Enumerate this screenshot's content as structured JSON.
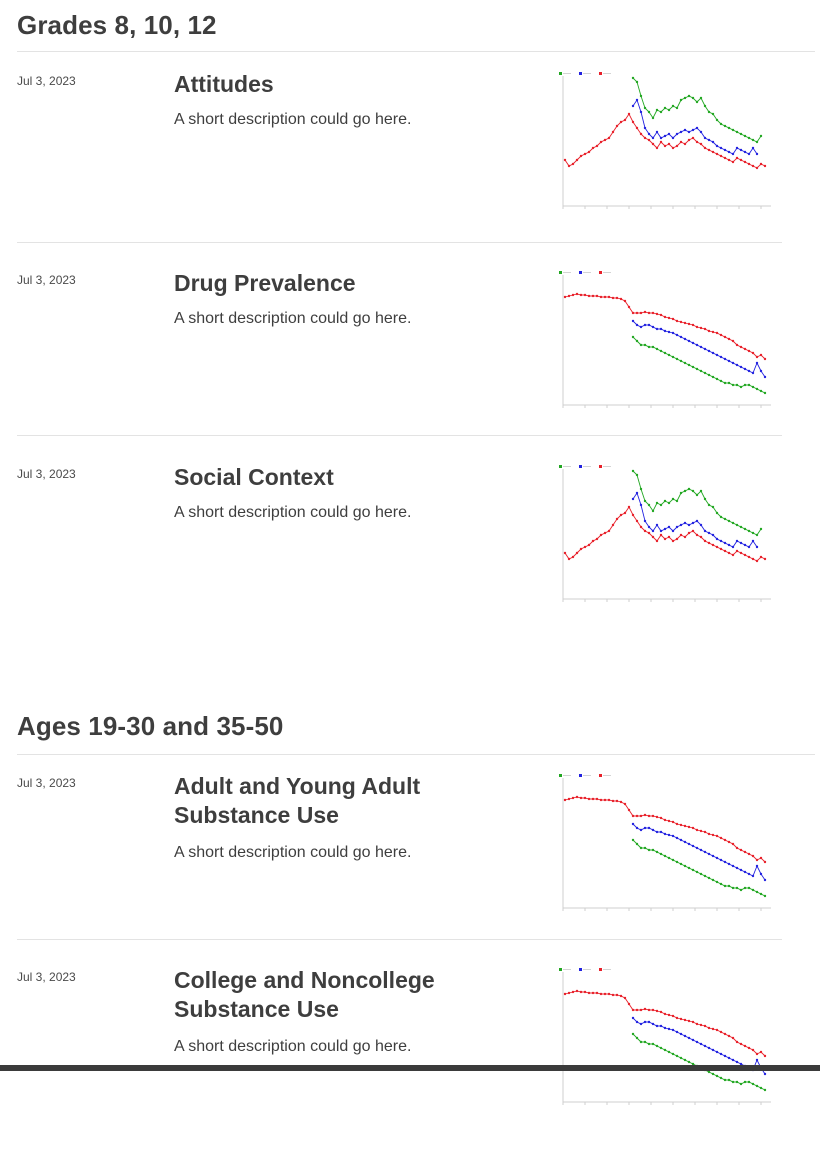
{
  "sections": [
    {
      "heading": "Grades 8, 10, 12",
      "items": [
        {
          "date": "Jul 3, 2023",
          "title": "Attitudes",
          "description": "A short description could go here.",
          "thumb": "trend-up"
        },
        {
          "date": "Jul 3, 2023",
          "title": "Drug Prevalence",
          "description": "A short description could go here.",
          "thumb": "trend-down"
        },
        {
          "date": "Jul 3, 2023",
          "title": "Social Context",
          "description": "A short description could go here.",
          "thumb": "trend-up"
        }
      ]
    },
    {
      "heading": "Ages 19-30 and 35-50",
      "items": [
        {
          "date": "Jul 3, 2023",
          "title": "Adult and Young Adult Substance Use",
          "description": "A short description could go here.",
          "thumb": "trend-down"
        },
        {
          "date": "Jul 3, 2023",
          "title": "College and Noncollege Substance Use",
          "description": "A short description could go here.",
          "thumb": "trend-down"
        }
      ]
    }
  ],
  "thumbnail_colors": {
    "grade8": "#22a722",
    "grade10": "#2222e0",
    "grade12": "#e8202a"
  }
}
